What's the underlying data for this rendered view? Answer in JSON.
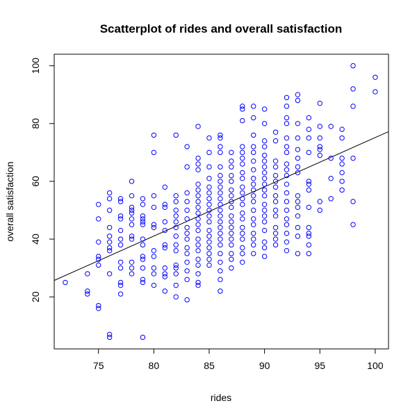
{
  "chart_data": {
    "type": "scatter",
    "title": "Scatterplot of rides and overall satisfaction",
    "xlabel": "rides",
    "ylabel": "overall satisfaction",
    "xlim": [
      71,
      101.2
    ],
    "ylim": [
      2,
      104
    ],
    "xticks": [
      75,
      80,
      85,
      90,
      95,
      100
    ],
    "yticks": [
      20,
      40,
      60,
      80,
      100
    ],
    "grid": false,
    "legend": "none",
    "point_color": "#0000ff",
    "line_color": "#000000",
    "regression_line": {
      "x": [
        71,
        101.2
      ],
      "y": [
        25.7,
        77.2
      ]
    },
    "points": [
      {
        "x": 72,
        "y": 25
      },
      {
        "x": 74,
        "y": 28
      },
      {
        "x": 74,
        "y": 22
      },
      {
        "x": 74,
        "y": 21
      },
      {
        "x": 75,
        "y": 52
      },
      {
        "x": 75,
        "y": 47
      },
      {
        "x": 75,
        "y": 39
      },
      {
        "x": 75,
        "y": 34
      },
      {
        "x": 75,
        "y": 33
      },
      {
        "x": 75,
        "y": 31
      },
      {
        "x": 75,
        "y": 17
      },
      {
        "x": 75,
        "y": 16
      },
      {
        "x": 76,
        "y": 56
      },
      {
        "x": 76,
        "y": 54
      },
      {
        "x": 76,
        "y": 50
      },
      {
        "x": 76,
        "y": 44
      },
      {
        "x": 76,
        "y": 41
      },
      {
        "x": 76,
        "y": 39
      },
      {
        "x": 76,
        "y": 37
      },
      {
        "x": 76,
        "y": 36
      },
      {
        "x": 76,
        "y": 28
      },
      {
        "x": 76,
        "y": 7
      },
      {
        "x": 76,
        "y": 6
      },
      {
        "x": 77,
        "y": 54
      },
      {
        "x": 77,
        "y": 53
      },
      {
        "x": 77,
        "y": 48
      },
      {
        "x": 77,
        "y": 47
      },
      {
        "x": 77,
        "y": 43
      },
      {
        "x": 77,
        "y": 40
      },
      {
        "x": 77,
        "y": 38
      },
      {
        "x": 77,
        "y": 32
      },
      {
        "x": 77,
        "y": 30
      },
      {
        "x": 77,
        "y": 25
      },
      {
        "x": 77,
        "y": 24
      },
      {
        "x": 77,
        "y": 21
      },
      {
        "x": 78,
        "y": 60
      },
      {
        "x": 78,
        "y": 55
      },
      {
        "x": 78,
        "y": 51
      },
      {
        "x": 78,
        "y": 50
      },
      {
        "x": 78,
        "y": 49
      },
      {
        "x": 78,
        "y": 47
      },
      {
        "x": 78,
        "y": 45
      },
      {
        "x": 78,
        "y": 41
      },
      {
        "x": 78,
        "y": 40
      },
      {
        "x": 78,
        "y": 32
      },
      {
        "x": 78,
        "y": 30
      },
      {
        "x": 78,
        "y": 28
      },
      {
        "x": 79,
        "y": 54
      },
      {
        "x": 79,
        "y": 52
      },
      {
        "x": 79,
        "y": 48
      },
      {
        "x": 79,
        "y": 47
      },
      {
        "x": 79,
        "y": 46
      },
      {
        "x": 79,
        "y": 45
      },
      {
        "x": 79,
        "y": 40
      },
      {
        "x": 79,
        "y": 38
      },
      {
        "x": 79,
        "y": 34
      },
      {
        "x": 79,
        "y": 33
      },
      {
        "x": 79,
        "y": 30
      },
      {
        "x": 79,
        "y": 26
      },
      {
        "x": 79,
        "y": 25
      },
      {
        "x": 79,
        "y": 6
      },
      {
        "x": 80,
        "y": 76
      },
      {
        "x": 80,
        "y": 70
      },
      {
        "x": 80,
        "y": 55
      },
      {
        "x": 80,
        "y": 51
      },
      {
        "x": 80,
        "y": 45
      },
      {
        "x": 80,
        "y": 44
      },
      {
        "x": 80,
        "y": 36
      },
      {
        "x": 80,
        "y": 34
      },
      {
        "x": 80,
        "y": 30
      },
      {
        "x": 80,
        "y": 28
      },
      {
        "x": 80,
        "y": 24
      },
      {
        "x": 81,
        "y": 58
      },
      {
        "x": 81,
        "y": 52
      },
      {
        "x": 81,
        "y": 51
      },
      {
        "x": 81,
        "y": 46
      },
      {
        "x": 81,
        "y": 43
      },
      {
        "x": 81,
        "y": 38
      },
      {
        "x": 81,
        "y": 37
      },
      {
        "x": 81,
        "y": 30
      },
      {
        "x": 81,
        "y": 28
      },
      {
        "x": 81,
        "y": 27
      },
      {
        "x": 81,
        "y": 22
      },
      {
        "x": 82,
        "y": 76
      },
      {
        "x": 82,
        "y": 55
      },
      {
        "x": 82,
        "y": 53
      },
      {
        "x": 82,
        "y": 50
      },
      {
        "x": 82,
        "y": 48
      },
      {
        "x": 82,
        "y": 46
      },
      {
        "x": 82,
        "y": 44
      },
      {
        "x": 82,
        "y": 41
      },
      {
        "x": 82,
        "y": 38
      },
      {
        "x": 82,
        "y": 36
      },
      {
        "x": 82,
        "y": 31
      },
      {
        "x": 82,
        "y": 30
      },
      {
        "x": 82,
        "y": 28
      },
      {
        "x": 82,
        "y": 24
      },
      {
        "x": 82,
        "y": 20
      },
      {
        "x": 83,
        "y": 72
      },
      {
        "x": 83,
        "y": 65
      },
      {
        "x": 83,
        "y": 56
      },
      {
        "x": 83,
        "y": 53
      },
      {
        "x": 83,
        "y": 50
      },
      {
        "x": 83,
        "y": 47
      },
      {
        "x": 83,
        "y": 44
      },
      {
        "x": 83,
        "y": 42
      },
      {
        "x": 83,
        "y": 40
      },
      {
        "x": 83,
        "y": 37
      },
      {
        "x": 83,
        "y": 35
      },
      {
        "x": 83,
        "y": 32
      },
      {
        "x": 83,
        "y": 29
      },
      {
        "x": 83,
        "y": 26
      },
      {
        "x": 83,
        "y": 19
      },
      {
        "x": 84,
        "y": 79
      },
      {
        "x": 84,
        "y": 68
      },
      {
        "x": 84,
        "y": 66
      },
      {
        "x": 84,
        "y": 64
      },
      {
        "x": 84,
        "y": 59
      },
      {
        "x": 84,
        "y": 57
      },
      {
        "x": 84,
        "y": 55
      },
      {
        "x": 84,
        "y": 53
      },
      {
        "x": 84,
        "y": 51
      },
      {
        "x": 84,
        "y": 49
      },
      {
        "x": 84,
        "y": 47
      },
      {
        "x": 84,
        "y": 45
      },
      {
        "x": 84,
        "y": 43
      },
      {
        "x": 84,
        "y": 40
      },
      {
        "x": 84,
        "y": 38
      },
      {
        "x": 84,
        "y": 36
      },
      {
        "x": 84,
        "y": 33
      },
      {
        "x": 84,
        "y": 31
      },
      {
        "x": 84,
        "y": 28
      },
      {
        "x": 84,
        "y": 25
      },
      {
        "x": 84,
        "y": 24
      },
      {
        "x": 85,
        "y": 75
      },
      {
        "x": 85,
        "y": 70
      },
      {
        "x": 85,
        "y": 65
      },
      {
        "x": 85,
        "y": 61
      },
      {
        "x": 85,
        "y": 58
      },
      {
        "x": 85,
        "y": 56
      },
      {
        "x": 85,
        "y": 54
      },
      {
        "x": 85,
        "y": 52
      },
      {
        "x": 85,
        "y": 50
      },
      {
        "x": 85,
        "y": 48
      },
      {
        "x": 85,
        "y": 46
      },
      {
        "x": 85,
        "y": 43
      },
      {
        "x": 85,
        "y": 41
      },
      {
        "x": 85,
        "y": 39
      },
      {
        "x": 85,
        "y": 37
      },
      {
        "x": 85,
        "y": 35
      },
      {
        "x": 85,
        "y": 33
      },
      {
        "x": 85,
        "y": 31
      },
      {
        "x": 86,
        "y": 76
      },
      {
        "x": 86,
        "y": 75
      },
      {
        "x": 86,
        "y": 72
      },
      {
        "x": 86,
        "y": 70
      },
      {
        "x": 86,
        "y": 65
      },
      {
        "x": 86,
        "y": 62
      },
      {
        "x": 86,
        "y": 60
      },
      {
        "x": 86,
        "y": 58
      },
      {
        "x": 86,
        "y": 56
      },
      {
        "x": 86,
        "y": 54
      },
      {
        "x": 86,
        "y": 52
      },
      {
        "x": 86,
        "y": 50
      },
      {
        "x": 86,
        "y": 48
      },
      {
        "x": 86,
        "y": 46
      },
      {
        "x": 86,
        "y": 44
      },
      {
        "x": 86,
        "y": 42
      },
      {
        "x": 86,
        "y": 40
      },
      {
        "x": 86,
        "y": 38
      },
      {
        "x": 86,
        "y": 35
      },
      {
        "x": 86,
        "y": 32
      },
      {
        "x": 86,
        "y": 29
      },
      {
        "x": 86,
        "y": 26
      },
      {
        "x": 86,
        "y": 22
      },
      {
        "x": 87,
        "y": 70
      },
      {
        "x": 87,
        "y": 67
      },
      {
        "x": 87,
        "y": 65
      },
      {
        "x": 87,
        "y": 62
      },
      {
        "x": 87,
        "y": 60
      },
      {
        "x": 87,
        "y": 57
      },
      {
        "x": 87,
        "y": 55
      },
      {
        "x": 87,
        "y": 53
      },
      {
        "x": 87,
        "y": 51
      },
      {
        "x": 87,
        "y": 48
      },
      {
        "x": 87,
        "y": 46
      },
      {
        "x": 87,
        "y": 44
      },
      {
        "x": 87,
        "y": 42
      },
      {
        "x": 87,
        "y": 40
      },
      {
        "x": 87,
        "y": 38
      },
      {
        "x": 87,
        "y": 35
      },
      {
        "x": 87,
        "y": 33
      },
      {
        "x": 87,
        "y": 30
      },
      {
        "x": 88,
        "y": 86
      },
      {
        "x": 88,
        "y": 85
      },
      {
        "x": 88,
        "y": 81
      },
      {
        "x": 88,
        "y": 72
      },
      {
        "x": 88,
        "y": 70
      },
      {
        "x": 88,
        "y": 68
      },
      {
        "x": 88,
        "y": 66
      },
      {
        "x": 88,
        "y": 63
      },
      {
        "x": 88,
        "y": 61
      },
      {
        "x": 88,
        "y": 58
      },
      {
        "x": 88,
        "y": 56
      },
      {
        "x": 88,
        "y": 54
      },
      {
        "x": 88,
        "y": 52
      },
      {
        "x": 88,
        "y": 49
      },
      {
        "x": 88,
        "y": 47
      },
      {
        "x": 88,
        "y": 44
      },
      {
        "x": 88,
        "y": 42
      },
      {
        "x": 88,
        "y": 40
      },
      {
        "x": 88,
        "y": 37
      },
      {
        "x": 88,
        "y": 35
      },
      {
        "x": 88,
        "y": 32
      },
      {
        "x": 89,
        "y": 86
      },
      {
        "x": 89,
        "y": 82
      },
      {
        "x": 89,
        "y": 76
      },
      {
        "x": 89,
        "y": 72
      },
      {
        "x": 89,
        "y": 70
      },
      {
        "x": 89,
        "y": 67
      },
      {
        "x": 89,
        "y": 64
      },
      {
        "x": 89,
        "y": 61
      },
      {
        "x": 89,
        "y": 59
      },
      {
        "x": 89,
        "y": 57
      },
      {
        "x": 89,
        "y": 55
      },
      {
        "x": 89,
        "y": 53
      },
      {
        "x": 89,
        "y": 50
      },
      {
        "x": 89,
        "y": 47
      },
      {
        "x": 89,
        "y": 45
      },
      {
        "x": 89,
        "y": 42
      },
      {
        "x": 89,
        "y": 40
      },
      {
        "x": 89,
        "y": 38
      },
      {
        "x": 89,
        "y": 35
      },
      {
        "x": 90,
        "y": 85
      },
      {
        "x": 90,
        "y": 80
      },
      {
        "x": 90,
        "y": 74
      },
      {
        "x": 90,
        "y": 72
      },
      {
        "x": 90,
        "y": 69
      },
      {
        "x": 90,
        "y": 67
      },
      {
        "x": 90,
        "y": 65
      },
      {
        "x": 90,
        "y": 63
      },
      {
        "x": 90,
        "y": 61
      },
      {
        "x": 90,
        "y": 59
      },
      {
        "x": 90,
        "y": 57
      },
      {
        "x": 90,
        "y": 55
      },
      {
        "x": 90,
        "y": 52
      },
      {
        "x": 90,
        "y": 50
      },
      {
        "x": 90,
        "y": 48
      },
      {
        "x": 90,
        "y": 46
      },
      {
        "x": 90,
        "y": 43
      },
      {
        "x": 90,
        "y": 39
      },
      {
        "x": 90,
        "y": 37
      },
      {
        "x": 90,
        "y": 34
      },
      {
        "x": 91,
        "y": 77
      },
      {
        "x": 91,
        "y": 74
      },
      {
        "x": 91,
        "y": 67
      },
      {
        "x": 91,
        "y": 65
      },
      {
        "x": 91,
        "y": 62
      },
      {
        "x": 91,
        "y": 60
      },
      {
        "x": 91,
        "y": 58
      },
      {
        "x": 91,
        "y": 55
      },
      {
        "x": 91,
        "y": 53
      },
      {
        "x": 91,
        "y": 50
      },
      {
        "x": 91,
        "y": 48
      },
      {
        "x": 91,
        "y": 44
      },
      {
        "x": 91,
        "y": 42
      },
      {
        "x": 91,
        "y": 40
      },
      {
        "x": 91,
        "y": 38
      },
      {
        "x": 92,
        "y": 89
      },
      {
        "x": 92,
        "y": 86
      },
      {
        "x": 92,
        "y": 82
      },
      {
        "x": 92,
        "y": 80
      },
      {
        "x": 92,
        "y": 75
      },
      {
        "x": 92,
        "y": 72
      },
      {
        "x": 92,
        "y": 70
      },
      {
        "x": 92,
        "y": 66
      },
      {
        "x": 92,
        "y": 64
      },
      {
        "x": 92,
        "y": 62
      },
      {
        "x": 92,
        "y": 59
      },
      {
        "x": 92,
        "y": 56
      },
      {
        "x": 92,
        "y": 53
      },
      {
        "x": 92,
        "y": 50
      },
      {
        "x": 92,
        "y": 47
      },
      {
        "x": 92,
        "y": 45
      },
      {
        "x": 92,
        "y": 42
      },
      {
        "x": 92,
        "y": 39
      },
      {
        "x": 92,
        "y": 36
      },
      {
        "x": 93,
        "y": 90
      },
      {
        "x": 93,
        "y": 88
      },
      {
        "x": 93,
        "y": 80
      },
      {
        "x": 93,
        "y": 75
      },
      {
        "x": 93,
        "y": 71
      },
      {
        "x": 93,
        "y": 68
      },
      {
        "x": 93,
        "y": 65
      },
      {
        "x": 93,
        "y": 63
      },
      {
        "x": 93,
        "y": 55
      },
      {
        "x": 93,
        "y": 53
      },
      {
        "x": 93,
        "y": 51
      },
      {
        "x": 93,
        "y": 48
      },
      {
        "x": 93,
        "y": 44
      },
      {
        "x": 93,
        "y": 41
      },
      {
        "x": 93,
        "y": 35
      },
      {
        "x": 94,
        "y": 82
      },
      {
        "x": 94,
        "y": 78
      },
      {
        "x": 94,
        "y": 75
      },
      {
        "x": 94,
        "y": 70
      },
      {
        "x": 94,
        "y": 60
      },
      {
        "x": 94,
        "y": 59
      },
      {
        "x": 94,
        "y": 57
      },
      {
        "x": 94,
        "y": 51
      },
      {
        "x": 94,
        "y": 44
      },
      {
        "x": 94,
        "y": 42
      },
      {
        "x": 94,
        "y": 41
      },
      {
        "x": 94,
        "y": 38
      },
      {
        "x": 94,
        "y": 35
      },
      {
        "x": 95,
        "y": 87
      },
      {
        "x": 95,
        "y": 79
      },
      {
        "x": 95,
        "y": 75
      },
      {
        "x": 95,
        "y": 72
      },
      {
        "x": 95,
        "y": 71
      },
      {
        "x": 95,
        "y": 69
      },
      {
        "x": 95,
        "y": 53
      },
      {
        "x": 95,
        "y": 50
      },
      {
        "x": 96,
        "y": 79
      },
      {
        "x": 96,
        "y": 68
      },
      {
        "x": 96,
        "y": 61
      },
      {
        "x": 96,
        "y": 54
      },
      {
        "x": 97,
        "y": 78
      },
      {
        "x": 97,
        "y": 75
      },
      {
        "x": 97,
        "y": 68
      },
      {
        "x": 97,
        "y": 66
      },
      {
        "x": 97,
        "y": 63
      },
      {
        "x": 97,
        "y": 60
      },
      {
        "x": 97,
        "y": 57
      },
      {
        "x": 98,
        "y": 100
      },
      {
        "x": 98,
        "y": 92
      },
      {
        "x": 98,
        "y": 86
      },
      {
        "x": 98,
        "y": 68
      },
      {
        "x": 98,
        "y": 53
      },
      {
        "x": 98,
        "y": 45
      },
      {
        "x": 100,
        "y": 96
      },
      {
        "x": 100,
        "y": 91
      }
    ]
  }
}
